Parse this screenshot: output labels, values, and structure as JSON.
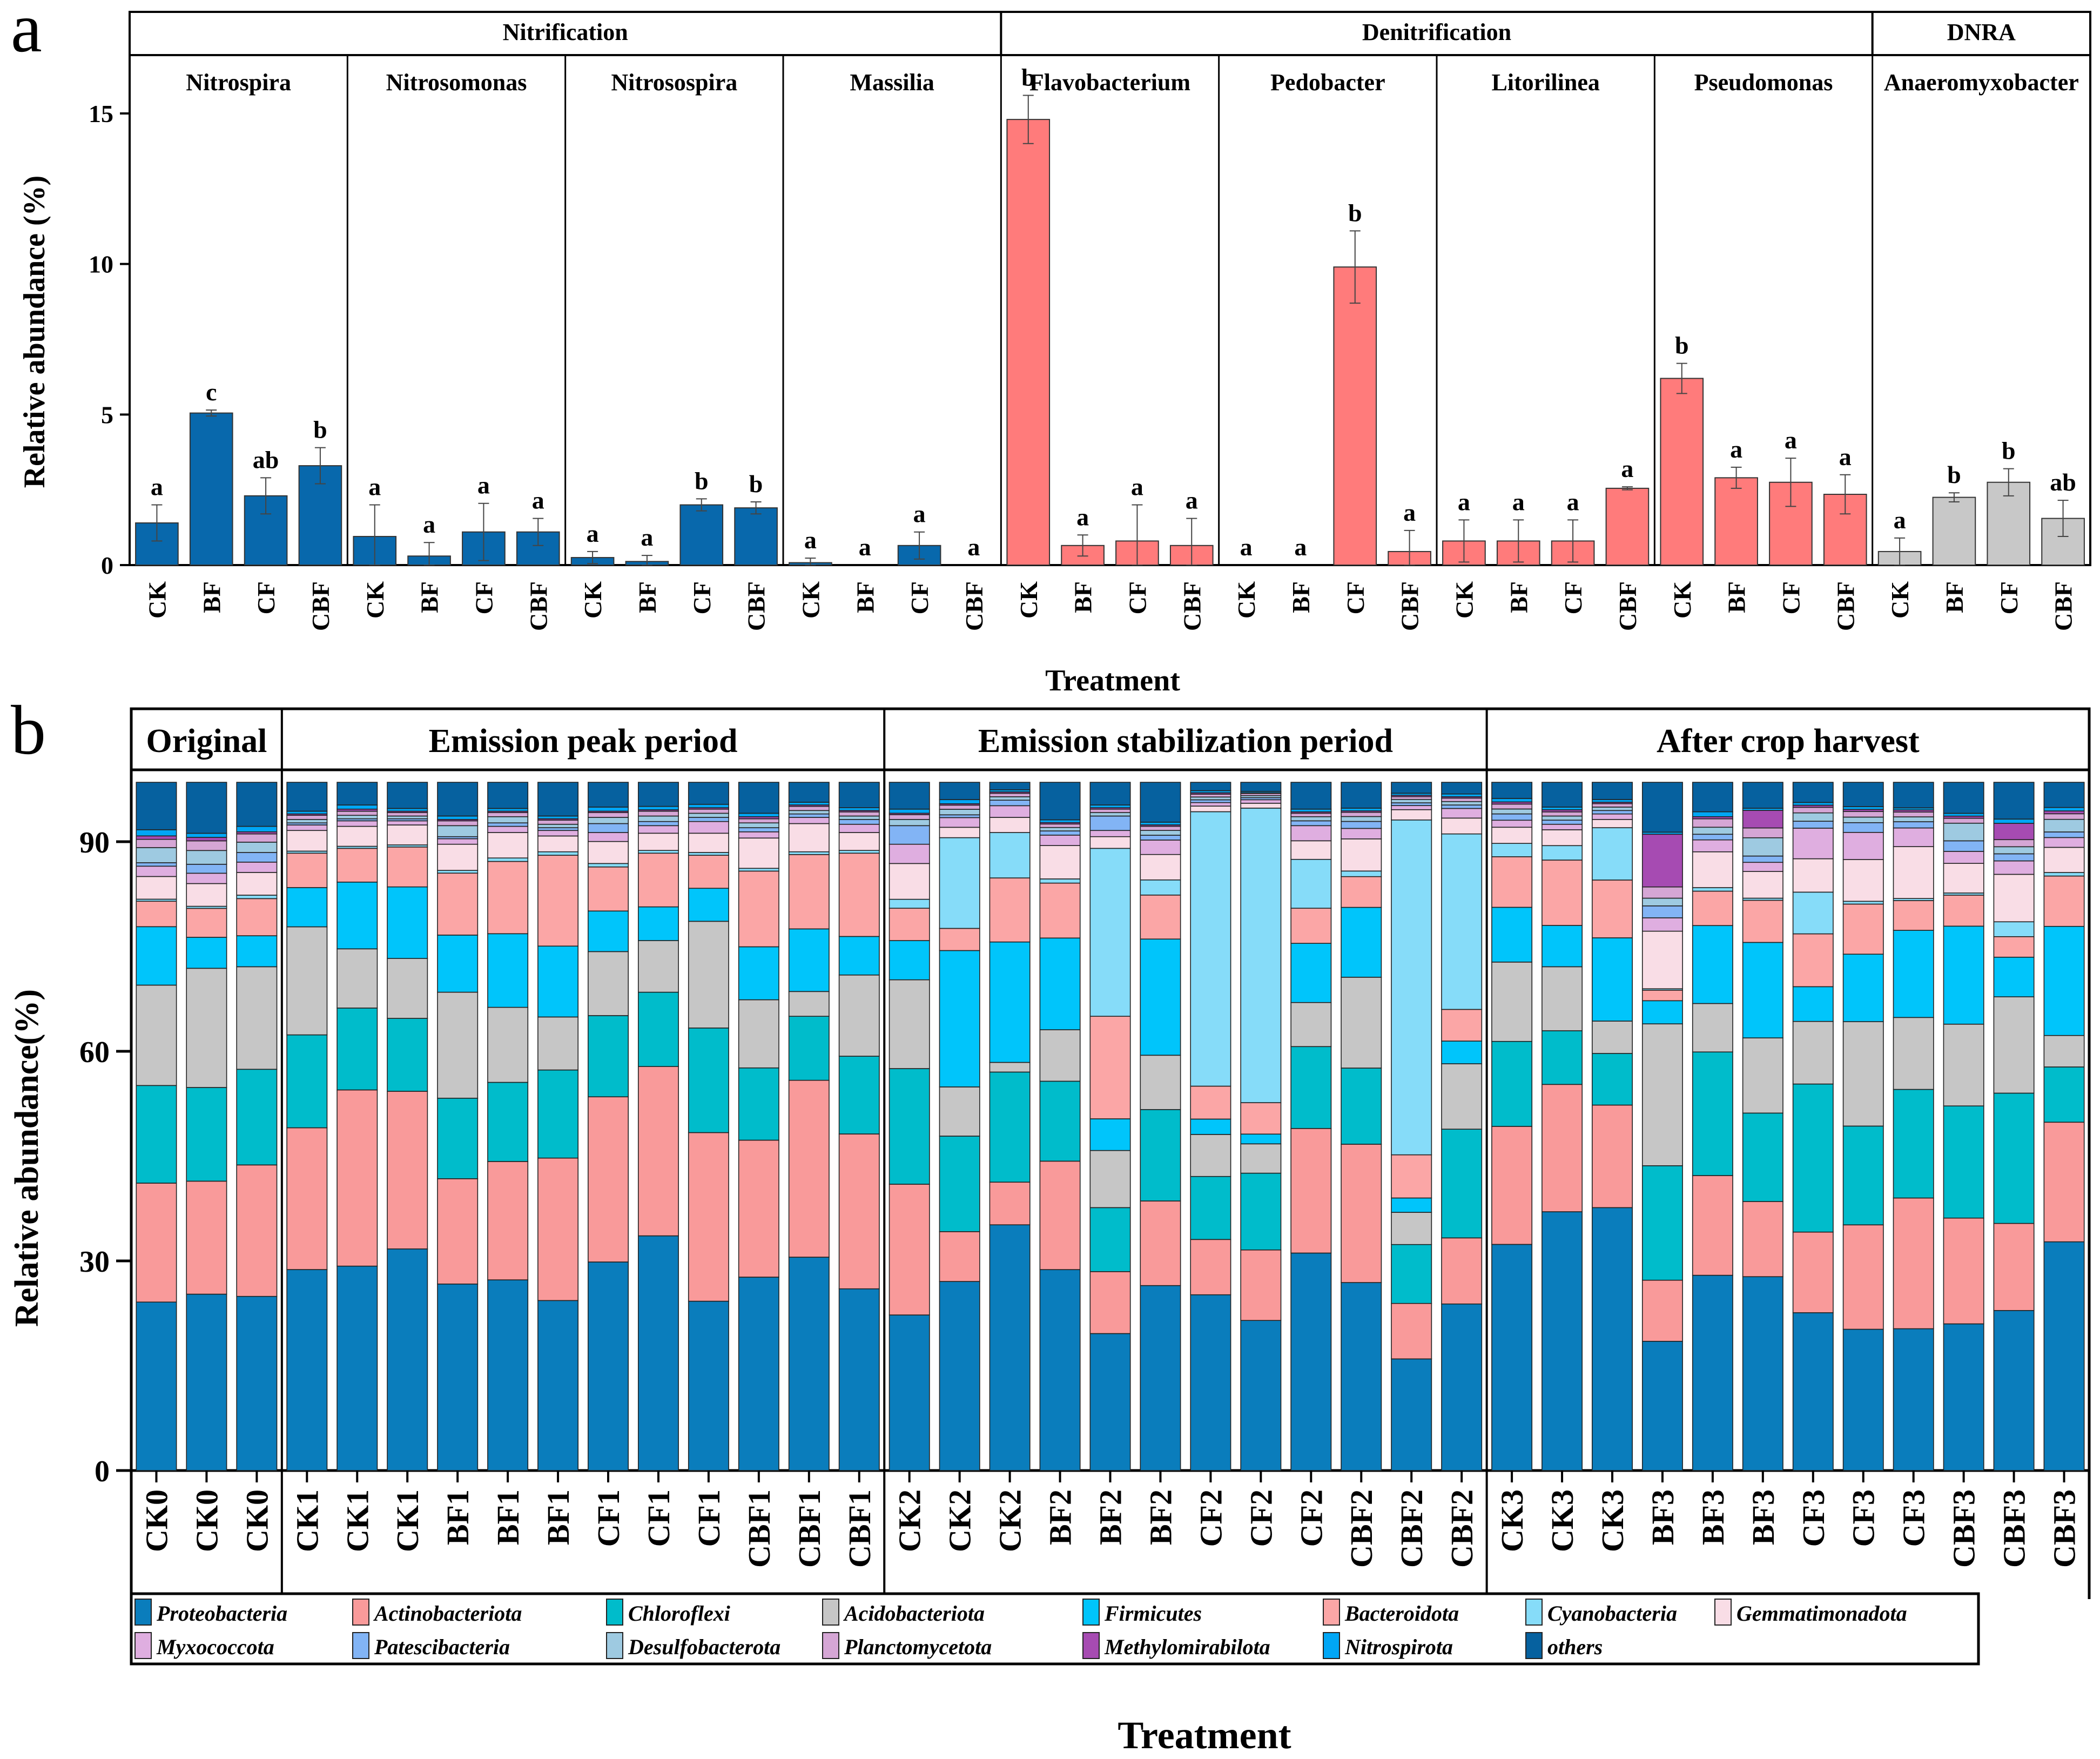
{
  "chart_data": [
    {
      "panel": "a",
      "type": "bar",
      "ylabel": "Relative abundance (%)",
      "xlabel": "Treatment",
      "ylim": [
        0,
        17
      ],
      "yticks": [
        0,
        5,
        10,
        15
      ],
      "treatments": [
        "CK",
        "BF",
        "CF",
        "CBF"
      ],
      "groups": [
        {
          "name": "Nitrification",
          "color": "#0868ac",
          "genera": [
            {
              "name": "Nitrospira",
              "values": [
                1.4,
                5.05,
                2.3,
                3.3
              ],
              "errors": [
                0.6,
                0.1,
                0.6,
                0.6
              ],
              "letters": [
                "a",
                "c",
                "ab",
                "b"
              ]
            },
            {
              "name": "Nitrosomonas",
              "values": [
                0.95,
                0.3,
                1.1,
                1.1
              ],
              "errors": [
                1.05,
                0.45,
                0.95,
                0.45
              ],
              "letters": [
                "a",
                "a",
                "a",
                "a"
              ]
            },
            {
              "name": "Nitrosospira",
              "values": [
                0.25,
                0.12,
                2.0,
                1.9
              ],
              "errors": [
                0.2,
                0.2,
                0.2,
                0.2
              ],
              "letters": [
                "a",
                "a",
                "b",
                "b"
              ]
            },
            {
              "name": "Massilia",
              "values": [
                0.08,
                0,
                0.65,
                0
              ],
              "errors": [
                0.15,
                0,
                0.45,
                0
              ],
              "letters": [
                "a",
                "a",
                "a",
                "a"
              ]
            }
          ]
        },
        {
          "name": "Denitrification",
          "color": "#ff7b7b",
          "genera": [
            {
              "name": "Flavobacterium",
              "values": [
                14.8,
                0.65,
                0.8,
                0.65
              ],
              "errors": [
                0.8,
                0.35,
                1.2,
                0.9
              ],
              "letters": [
                "b",
                "a",
                "a",
                "a"
              ]
            },
            {
              "name": "Pedobacter",
              "values": [
                0,
                0,
                9.9,
                0.45
              ],
              "errors": [
                0,
                0,
                1.2,
                0.7
              ],
              "letters": [
                "a",
                "a",
                "b",
                "a"
              ]
            },
            {
              "name": "Litorilinea",
              "values": [
                0.8,
                0.8,
                0.8,
                2.55
              ],
              "errors": [
                0.7,
                0.7,
                0.7,
                0.05
              ],
              "letters": [
                "a",
                "a",
                "a",
                "a"
              ]
            },
            {
              "name": "Pseudomonas",
              "values": [
                6.2,
                2.9,
                2.75,
                2.35
              ],
              "errors": [
                0.5,
                0.35,
                0.8,
                0.65
              ],
              "letters": [
                "b",
                "a",
                "a",
                "a"
              ]
            }
          ]
        },
        {
          "name": "DNRA",
          "color": "#c8c8c8",
          "genera": [
            {
              "name": "Anaeromyxobacter",
              "values": [
                0.45,
                2.25,
                2.75,
                1.55
              ],
              "errors": [
                0.45,
                0.15,
                0.45,
                0.6
              ],
              "letters": [
                "a",
                "b",
                "b",
                "ab"
              ]
            }
          ]
        }
      ]
    },
    {
      "panel": "b",
      "type": "bar",
      "stacked": true,
      "ylabel": "Relative abundance(%)",
      "xlabel": "Treatment",
      "ylim": [
        0,
        100
      ],
      "yticks": [
        0,
        30,
        60,
        90
      ],
      "periods": [
        {
          "name": "Original",
          "samples": [
            "CK0",
            "CK0",
            "CK0"
          ]
        },
        {
          "name": "Emission peak period",
          "samples": [
            "CK1",
            "CK1",
            "CK1",
            "BF1",
            "BF1",
            "BF1",
            "CF1",
            "CF1",
            "CF1",
            "CBF1",
            "CBF1",
            "CBF1"
          ]
        },
        {
          "name": "Emission stabilization period",
          "samples": [
            "CK2",
            "CK2",
            "CK2",
            "BF2",
            "BF2",
            "BF2",
            "CF2",
            "CF2",
            "CF2",
            "CBF2",
            "CBF2",
            "CBF2"
          ]
        },
        {
          "name": "After crop harvest",
          "samples": [
            "CK3",
            "CK3",
            "CK3",
            "BF3",
            "BF3",
            "BF3",
            "CF3",
            "CF3",
            "CF3",
            "CBF3",
            "CBF3",
            "CBF3"
          ]
        }
      ],
      "legend": [
        {
          "name": "Proteobacteria",
          "color": "#0a7dbc"
        },
        {
          "name": "Actinobacteriota",
          "color": "#f99a9a"
        },
        {
          "name": "Chloroflexi",
          "color": "#00bccb"
        },
        {
          "name": "Acidobacteriota",
          "color": "#c6c6c6"
        },
        {
          "name": "Firmicutes",
          "color": "#00c5fb"
        },
        {
          "name": "Bacteroidota",
          "color": "#fba6a6"
        },
        {
          "name": "Cyanobacteria",
          "color": "#86dcf9"
        },
        {
          "name": "Gemmatimonadota",
          "color": "#f9dde6"
        },
        {
          "name": "Myxococcota",
          "color": "#dfaee0"
        },
        {
          "name": "Patescibacteria",
          "color": "#82b4f5"
        },
        {
          "name": "Desulfobacterota",
          "color": "#9ecae1"
        },
        {
          "name": "Planctomycetota",
          "color": "#d5a6d5"
        },
        {
          "name": "Methylomirabilota",
          "color": "#a64bb2"
        },
        {
          "name": "Nitrospirota",
          "color": "#00a6f5"
        },
        {
          "name": "others",
          "color": "#06619f"
        }
      ],
      "series_order": [
        "Proteobacteria",
        "Actinobacteriota",
        "Chloroflexi",
        "Acidobacteriota",
        "Firmicutes",
        "Bacteroidota",
        "Cyanobacteria",
        "Gemmatimonadota",
        "Myxococcota",
        "Patescibacteria",
        "Desulfobacterota",
        "Planctomycetota",
        "Methylomirabilota",
        "Nitrospirota",
        "others"
      ],
      "values": [
        [
          24.5,
          17.3,
          14.2,
          14.6,
          8.5,
          3.7,
          0.3,
          3.3,
          1.5,
          0.5,
          2.2,
          1.2,
          0.5,
          0.9,
          6.9
        ],
        [
          25.6,
          16.4,
          13.6,
          17.3,
          4.5,
          4.2,
          0.3,
          3.3,
          1.5,
          1.3,
          2.0,
          1.4,
          0.5,
          0.6,
          7.4
        ],
        [
          25.3,
          19.1,
          13.9,
          14.9,
          4.5,
          5.4,
          0.5,
          3.3,
          1.5,
          1.4,
          1.5,
          1.2,
          0.3,
          0.8,
          6.4
        ],
        [
          29.2,
          20.6,
          13.5,
          15.7,
          5.7,
          5.0,
          0.3,
          3.0,
          0.8,
          0.3,
          0.5,
          0.6,
          0.2,
          0.4,
          4.2
        ],
        [
          29.7,
          25.6,
          11.9,
          8.6,
          9.7,
          4.9,
          0.3,
          2.9,
          0.8,
          0.3,
          0.5,
          0.6,
          0.3,
          0.6,
          3.3
        ],
        [
          32.2,
          22.9,
          10.6,
          8.7,
          10.4,
          5.8,
          0.3,
          2.9,
          0.6,
          0.3,
          0.4,
          0.5,
          0.2,
          0.4,
          3.8
        ],
        [
          27.1,
          15.3,
          11.7,
          15.4,
          8.3,
          9.0,
          0.4,
          3.8,
          0.8,
          0.3,
          1.6,
          0.7,
          0.2,
          0.5,
          4.9
        ],
        [
          27.7,
          17.2,
          11.5,
          10.9,
          10.7,
          10.5,
          0.5,
          3.7,
          0.9,
          0.5,
          0.9,
          0.6,
          0.2,
          0.4,
          3.8
        ],
        [
          24.7,
          20.7,
          12.8,
          7.7,
          10.3,
          13.2,
          0.5,
          2.3,
          0.8,
          0.4,
          0.5,
          0.6,
          0.2,
          0.4,
          4.9
        ],
        [
          30.3,
          24.0,
          11.8,
          9.3,
          5.9,
          6.4,
          0.5,
          3.2,
          1.3,
          1.3,
          0.9,
          0.7,
          0.2,
          0.6,
          3.6
        ],
        [
          34.1,
          24.6,
          10.8,
          7.5,
          4.9,
          7.8,
          0.4,
          2.5,
          1.1,
          0.6,
          0.8,
          0.7,
          0.2,
          0.5,
          3.5
        ],
        [
          24.6,
          24.5,
          15.2,
          15.5,
          4.8,
          4.8,
          0.4,
          2.8,
          1.7,
          0.6,
          0.6,
          0.6,
          0.2,
          0.5,
          3.2
        ],
        [
          28.1,
          19.9,
          10.5,
          9.9,
          7.7,
          11.0,
          0.4,
          4.4,
          0.9,
          0.6,
          0.7,
          0.6,
          0.3,
          0.5,
          4.5
        ],
        [
          31.0,
          25.7,
          9.3,
          3.6,
          9.1,
          10.8,
          0.4,
          4.1,
          0.9,
          0.5,
          0.5,
          0.6,
          0.2,
          0.4,
          2.9
        ],
        [
          26.4,
          22.5,
          11.3,
          11.8,
          5.6,
          12.1,
          0.4,
          2.6,
          1.2,
          0.7,
          0.5,
          0.6,
          0.2,
          0.4,
          3.7
        ],
        [
          22.6,
          19.0,
          16.8,
          12.9,
          5.7,
          4.7,
          1.3,
          5.2,
          2.8,
          2.7,
          0.9,
          0.7,
          0.2,
          0.6,
          3.9
        ],
        [
          27.3,
          7.2,
          13.8,
          7.1,
          19.7,
          3.2,
          13.1,
          1.5,
          1.4,
          0.4,
          0.8,
          0.6,
          0.2,
          0.6,
          2.5
        ],
        [
          35.7,
          6.2,
          16.0,
          1.4,
          17.5,
          9.3,
          6.6,
          2.2,
          1.7,
          0.8,
          0.5,
          0.5,
          0.2,
          0.3,
          1.1
        ],
        [
          28.9,
          15.6,
          11.5,
          7.4,
          13.2,
          7.9,
          0.6,
          4.8,
          1.5,
          0.6,
          0.5,
          0.5,
          0.2,
          0.4,
          5.4
        ],
        [
          19.9,
          9.0,
          9.3,
          8.3,
          4.6,
          14.9,
          24.4,
          1.7,
          0.9,
          2.1,
          0.5,
          0.5,
          0.2,
          0.4,
          3.3
        ],
        [
          26.9,
          12.3,
          13.3,
          7.9,
          16.9,
          6.4,
          2.2,
          3.7,
          2.1,
          0.7,
          0.7,
          0.6,
          0.2,
          0.4,
          5.8
        ],
        [
          25.1,
          7.9,
          9.0,
          6.0,
          2.2,
          4.7,
          39.2,
          0.8,
          0.5,
          0.4,
          0.4,
          0.4,
          0.2,
          0.3,
          1.2
        ],
        [
          21.5,
          10.1,
          11.0,
          4.2,
          1.4,
          4.5,
          42.2,
          0.7,
          0.5,
          0.3,
          0.3,
          0.3,
          0.1,
          0.2,
          1.3
        ],
        [
          31.6,
          18.1,
          11.9,
          6.4,
          8.6,
          5.1,
          7.1,
          2.7,
          2.2,
          0.7,
          0.6,
          0.5,
          0.2,
          0.4,
          3.9
        ],
        [
          26.9,
          19.8,
          10.9,
          13.0,
          10.0,
          4.4,
          0.8,
          4.6,
          1.5,
          1.0,
          0.7,
          0.6,
          0.2,
          0.4,
          3.7
        ],
        [
          16.3,
          8.1,
          8.6,
          4.7,
          2.1,
          6.3,
          48.9,
          1.5,
          0.6,
          0.4,
          0.5,
          0.4,
          0.2,
          0.3,
          1.6
        ],
        [
          24.2,
          9.6,
          15.8,
          9.5,
          3.3,
          4.6,
          25.5,
          2.3,
          1.4,
          0.5,
          0.5,
          0.5,
          0.2,
          0.4,
          1.7
        ],
        [
          32.2,
          16.8,
          12.1,
          11.3,
          7.8,
          7.2,
          1.9,
          2.3,
          1.0,
          0.9,
          0.7,
          0.7,
          0.3,
          0.5,
          2.3
        ],
        [
          37.6,
          18.5,
          7.8,
          9.3,
          6.0,
          9.5,
          2.1,
          2.3,
          0.8,
          0.6,
          0.6,
          0.6,
          0.3,
          0.4,
          3.6
        ],
        [
          38.2,
          14.9,
          7.5,
          4.7,
          12.1,
          8.4,
          7.6,
          1.2,
          0.8,
          0.5,
          0.5,
          0.5,
          0.2,
          0.4,
          2.5
        ],
        [
          18.4,
          8.7,
          16.3,
          20.2,
          3.3,
          1.5,
          0.2,
          8.2,
          1.9,
          1.7,
          1.1,
          1.6,
          7.5,
          0.3,
          7.1
        ],
        [
          27.8,
          14.2,
          17.6,
          6.9,
          11.1,
          4.9,
          0.5,
          5.1,
          1.7,
          0.8,
          1.0,
          1.2,
          0.3,
          0.7,
          4.2
        ],
        [
          27.6,
          10.7,
          12.6,
          10.7,
          13.6,
          6.0,
          0.3,
          3.8,
          1.3,
          0.9,
          2.6,
          1.4,
          2.5,
          0.3,
          3.7
        ],
        [
          22.7,
          11.6,
          21.3,
          9.0,
          5.0,
          7.6,
          6.0,
          4.8,
          4.4,
          1.0,
          1.2,
          0.8,
          0.3,
          0.4,
          2.9
        ],
        [
          20.3,
          15.0,
          14.2,
          15.0,
          9.7,
          7.2,
          0.4,
          6.0,
          3.9,
          1.4,
          0.8,
          0.8,
          0.3,
          0.4,
          3.5
        ],
        [
          20.5,
          18.9,
          15.7,
          10.4,
          12.6,
          4.3,
          0.3,
          7.5,
          2.7,
          0.9,
          0.7,
          0.7,
          0.3,
          0.3,
          3.7
        ],
        [
          20.8,
          15.0,
          15.9,
          11.6,
          13.9,
          4.4,
          0.3,
          4.2,
          1.7,
          1.5,
          2.5,
          0.7,
          0.3,
          0.4,
          4.4
        ],
        [
          22.6,
          12.3,
          18.4,
          13.6,
          5.6,
          2.9,
          2.1,
          6.7,
          1.9,
          1.0,
          1.0,
          1.0,
          2.3,
          0.6,
          5.2
        ],
        [
          32.7,
          17.1,
          7.9,
          4.5,
          15.6,
          7.2,
          0.5,
          3.6,
          1.4,
          0.8,
          1.8,
          0.8,
          0.4,
          0.5,
          3.6
        ]
      ]
    }
  ],
  "labels": {
    "panel_a": "a",
    "panel_b": "b"
  }
}
